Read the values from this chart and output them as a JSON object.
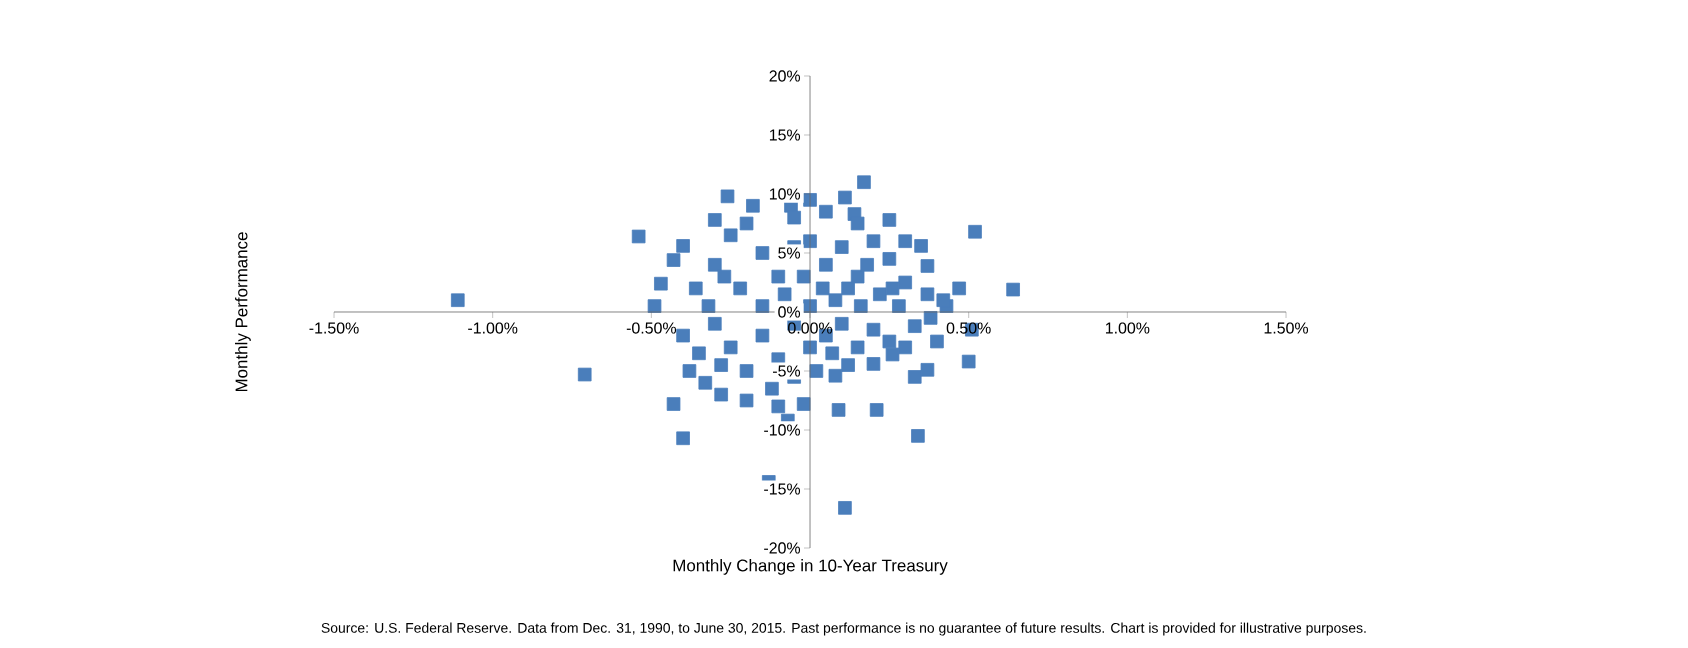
{
  "chart_data": {
    "type": "scatter",
    "xlabel": "Monthly Change in 10-Year Treasury",
    "ylabel": "Monthly Performance",
    "annotations": [
      "Source: U.S. Federal Reserve. Data from Dec. 31, 1990, to June 30, 2015. Past performance is no guarantee of future results. Chart is provided for illustrative purposes."
    ],
    "xlim": [
      -1.5,
      1.5
    ],
    "ylim": [
      -20,
      20
    ],
    "xticks": [
      {
        "value": -1.5,
        "label": "-1.50%"
      },
      {
        "value": -1.0,
        "label": "-1.00%"
      },
      {
        "value": -0.5,
        "label": "-0.50%"
      },
      {
        "value": 0,
        "label": "0.00%"
      },
      {
        "value": 0.5,
        "label": "0.50%"
      },
      {
        "value": 1.0,
        "label": "1.00%"
      },
      {
        "value": 1.5,
        "label": "1.50%"
      }
    ],
    "yticks": [
      {
        "value": -20,
        "label": "-20%"
      },
      {
        "value": -15,
        "label": "-15%"
      },
      {
        "value": -10,
        "label": "-10%"
      },
      {
        "value": -5,
        "label": "-5%"
      },
      {
        "value": 0,
        "label": "0%"
      },
      {
        "value": 5,
        "label": "5%"
      },
      {
        "value": 10,
        "label": "10%"
      },
      {
        "value": 15,
        "label": "15%"
      },
      {
        "value": 20,
        "label": "20%"
      }
    ],
    "marker": "square",
    "grid": false,
    "series": [
      {
        "color": "#4a7ebb",
        "x": [
          -1.11,
          -0.71,
          -0.54,
          -0.47,
          -0.49,
          -0.43,
          -0.4,
          -0.26,
          -0.43,
          -0.4,
          -0.13,
          0.17,
          -0.06,
          0.11,
          0.14,
          0.25,
          0.52,
          0.64,
          0.51,
          0.5,
          0.37,
          0.34,
          0.21,
          0.09,
          0.11,
          0.08,
          -0.02,
          -0.07,
          0.47,
          0.37,
          0.35,
          0.37,
          0.26,
          0.2,
          0.33,
          0.43,
          -0.3,
          -0.25,
          -0.2,
          -0.15,
          -0.1,
          -0.05,
          0,
          0.05,
          0.1,
          0.15,
          0.2,
          0.25,
          0.3,
          -0.3,
          -0.25,
          -0.2,
          -0.15,
          -0.1,
          -0.05,
          0,
          0.05,
          0.1,
          0.15,
          0.2,
          0.25,
          0.3,
          -0.35,
          -0.33,
          -0.28,
          -0.2,
          -0.12,
          -0.05,
          0.02,
          -0.36,
          -0.32,
          -0.22,
          -0.15,
          -0.08,
          0,
          0.04,
          0.08,
          0.12,
          0.16,
          0.22,
          0.28,
          -0.05,
          0.05,
          -0.18,
          0,
          -0.1,
          0.12,
          0.18,
          0.26,
          0.33,
          0.4,
          0.42,
          -0.02,
          0.07,
          -0.28,
          -0.38,
          -0.4,
          0.3,
          0.15,
          -0.3,
          -0.27,
          0.38
        ],
        "values": [
          1.0,
          -5.3,
          6.4,
          2.4,
          0.5,
          4.4,
          5.6,
          9.8,
          -7.8,
          -10.7,
          -14.4,
          11.0,
          9.0,
          9.7,
          8.3,
          7.8,
          6.8,
          1.9,
          -1.5,
          -4.2,
          -4.9,
          -10.5,
          -8.3,
          -8.3,
          -16.6,
          -5.4,
          -7.8,
          -9.2,
          2.0,
          3.9,
          5.6,
          1.5,
          -3.6,
          -4.4,
          -1.2,
          0.5,
          4.0,
          6.5,
          7.5,
          5,
          3,
          5.5,
          6,
          4,
          5.5,
          3,
          6,
          4.5,
          2.5,
          -1,
          -3,
          -5,
          -2,
          -4,
          -1,
          -3,
          -2,
          -1,
          -3,
          -1.5,
          -2.5,
          -3,
          -3.5,
          -6,
          -7,
          -7.5,
          -6.5,
          -5.5,
          -5,
          2,
          0.5,
          2,
          0.5,
          1.5,
          0.5,
          2,
          1,
          2,
          0.5,
          1.5,
          0.5,
          8,
          8.5,
          9,
          9.5,
          -8,
          -4.5,
          4,
          2,
          -5.5,
          -2.5,
          1.0,
          3,
          -3.5,
          -4.5,
          -5,
          -2,
          6,
          7.5,
          7.8,
          3,
          -0.5
        ]
      }
    ]
  }
}
